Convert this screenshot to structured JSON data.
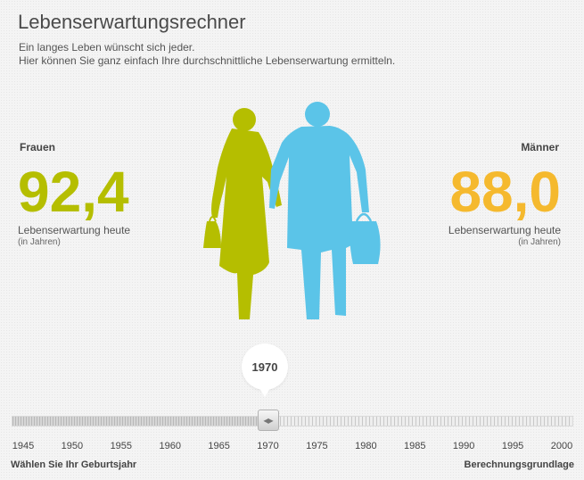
{
  "header": {
    "title": "Lebenserwartungsrechner",
    "intro_line1": "Ein langes Leben wünscht sich jeder.",
    "intro_line2": "Hier können Sie ganz einfach Ihre durchschnittliche Lebenserwartung ermitteln."
  },
  "women": {
    "label": "Frauen",
    "value": "92,4",
    "expectancy_label": "Lebenserwartung heute",
    "unit": "(in Jahren)",
    "color": "#b5be00"
  },
  "men": {
    "label": "Männer",
    "value": "88,0",
    "expectancy_label": "Lebenserwartung heute",
    "unit": "(in Jahren)",
    "color": "#f5b92e"
  },
  "slider": {
    "selected_year": "1970",
    "min_year": 1945,
    "max_year": 2000,
    "ticks": [
      "1945",
      "1950",
      "1955",
      "1960",
      "1965",
      "1970",
      "1975",
      "1980",
      "1985",
      "1990",
      "1995",
      "2000"
    ]
  },
  "footer": {
    "pick_label": "Wählen Sie Ihr Geburtsjahr",
    "basis_link": "Berechnungsgrundlage"
  },
  "icons": {
    "woman": "woman-silhouette-icon",
    "man": "man-silhouette-icon",
    "thumb": "slider-arrows-icon"
  }
}
